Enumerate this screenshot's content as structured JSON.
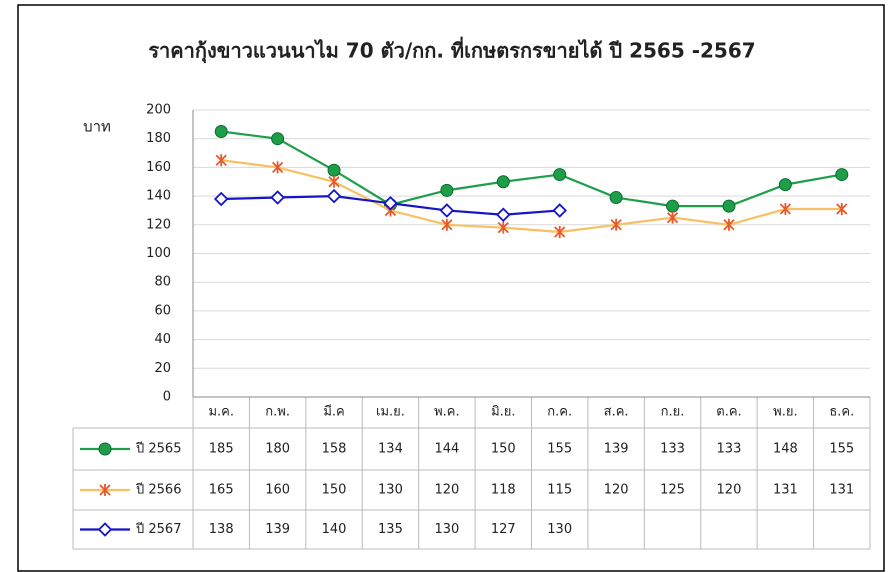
{
  "chart_data": {
    "type": "line",
    "title": "ราคากุ้งขาวแวนนาไม 70 ตัว/กก. ที่เกษตรกรขายได้ ปี 2565 -2567",
    "y_label": "บาท",
    "categories": [
      "ม.ค.",
      "ก.พ.",
      "มี.ค",
      "เม.ย.",
      "พ.ค.",
      "มิ.ย.",
      "ก.ค.",
      "ส.ค.",
      "ก.ย.",
      "ต.ค.",
      "พ.ย.",
      "ธ.ค."
    ],
    "series": [
      {
        "name": "ปี 2565",
        "color": "#1f9e4a",
        "marker": "circle",
        "marker_color": "#1f9e4a",
        "values": [
          185,
          180,
          158,
          134,
          144,
          150,
          155,
          139,
          133,
          133,
          148,
          155
        ]
      },
      {
        "name": "ปี 2566",
        "color": "#f8c064",
        "marker": "x",
        "marker_color": "#e8582a",
        "values": [
          165,
          160,
          150,
          130,
          120,
          118,
          115,
          120,
          125,
          120,
          131,
          131
        ]
      },
      {
        "name": "ปี 2567",
        "color": "#1515c8",
        "marker": "diamond",
        "marker_color": "#1515c8",
        "values": [
          138,
          139,
          140,
          135,
          130,
          127,
          130,
          null,
          null,
          null,
          null,
          null
        ]
      }
    ],
    "ylim": [
      0,
      200
    ],
    "yticks": [
      0,
      20,
      40,
      60,
      80,
      100,
      120,
      140,
      160,
      180,
      200
    ],
    "grid": true
  }
}
